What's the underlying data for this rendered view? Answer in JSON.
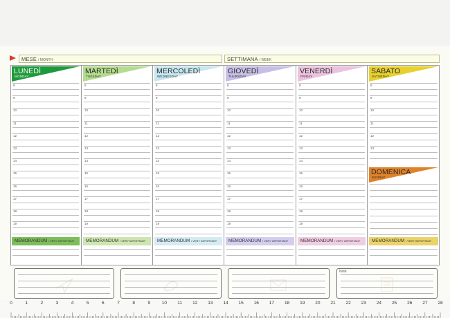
{
  "header": {
    "month_label": "MESE",
    "month_label_en": "/ MONTH",
    "week_label": "SETTIMANA",
    "week_label_en": "/ WEEK"
  },
  "days": [
    {
      "name": "LUNEDÌ",
      "sub": "MONDAY",
      "color": "#1e9a3c",
      "text_light": true
    },
    {
      "name": "MARTEDÌ",
      "sub": "TUESDAY",
      "color": "#b4dc8e",
      "text_light": false
    },
    {
      "name": "MERCOLEDÌ",
      "sub": "WEDNESDAY",
      "color": "#c6e7ef",
      "text_light": false
    },
    {
      "name": "GIOVEDÌ",
      "sub": "THURSDAY",
      "color": "#c8bfe6",
      "text_light": false
    },
    {
      "name": "VENERDÌ",
      "sub": "FRIDAY",
      "color": "#ecc3df",
      "text_light": false
    },
    {
      "name": "SABATO",
      "sub": "SATURDAY",
      "color": "#e7d12f",
      "text_light": false
    }
  ],
  "sunday": {
    "name": "DOMENICA",
    "sub": "SUNDAY",
    "color": "#e0822a"
  },
  "hours": [
    "8",
    "9",
    "10",
    "11",
    "12",
    "13",
    "14",
    "15",
    "16",
    "17",
    "18",
    "19"
  ],
  "sat_hours": [
    "8",
    "9",
    "10",
    "11",
    "12",
    "13"
  ],
  "memo": {
    "label": "MEMORANDUM",
    "label_en": "/ VERY IMPORTANT",
    "colors": [
      "#7dbd5a",
      "#cde6b0",
      "#d4ebf2",
      "#d4cdee",
      "#efcde3",
      "#ebd36a"
    ]
  },
  "note_label": "Note",
  "ruler": [
    "0",
    "1",
    "2",
    "3",
    "4",
    "5",
    "6",
    "7",
    "8",
    "9",
    "10",
    "11",
    "12",
    "13",
    "14",
    "15",
    "16",
    "17",
    "18",
    "19",
    "20",
    "21",
    "22",
    "23",
    "24",
    "25",
    "26",
    "27",
    "28"
  ]
}
